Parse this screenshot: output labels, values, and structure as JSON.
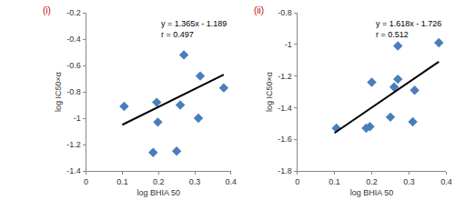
{
  "chart_data": [
    {
      "type": "scatter",
      "title": "(i)",
      "x": [
        0.105,
        0.185,
        0.195,
        0.198,
        0.25,
        0.26,
        0.27,
        0.31,
        0.315,
        0.38
      ],
      "values": [
        -0.91,
        -1.26,
        -0.88,
        -1.03,
        -1.25,
        -0.9,
        -0.52,
        -1.0,
        -0.68,
        -0.77
      ],
      "color": "#4a7ebb",
      "marker": "diamond",
      "trendline": {
        "type": "line",
        "x": [
          0.1,
          0.38
        ],
        "values": [
          -1.05,
          -0.67
        ],
        "color": "#000000",
        "line_style": "solid"
      },
      "annotations": [
        "y = 1.365x - 1.189",
        "r = 0.497"
      ],
      "x_label": "log BHIA 50",
      "y_label": "log IC50×α",
      "xlim": [
        0,
        0.4
      ],
      "xticks": [
        0,
        0.1,
        0.2,
        0.3,
        0.4
      ],
      "ylim": [
        -1.4,
        -0.2
      ],
      "yticks": [
        -1.4,
        -1.2,
        -1,
        -0.8,
        -0.6,
        -0.4,
        -0.2
      ],
      "grid": false
    },
    {
      "type": "scatter",
      "title": "(ii)",
      "x": [
        0.105,
        0.185,
        0.195,
        0.2,
        0.25,
        0.26,
        0.27,
        0.27,
        0.31,
        0.315,
        0.38
      ],
      "values": [
        -1.53,
        -1.53,
        -1.52,
        -1.24,
        -1.46,
        -1.27,
        -1.22,
        -1.01,
        -1.49,
        -1.29,
        -0.99
      ],
      "color": "#4a7ebb",
      "marker": "diamond",
      "trendline": {
        "type": "line",
        "x": [
          0.1,
          0.38
        ],
        "values": [
          -1.56,
          -1.11
        ],
        "color": "#000000",
        "line_style": "solid"
      },
      "annotations": [
        "y = 1.618x - 1.726",
        "r = 0.512"
      ],
      "x_label": "log BHIA 50",
      "y_label": "log IC50×α",
      "xlim": [
        0,
        0.4
      ],
      "xticks": [
        0,
        0.1,
        0.2,
        0.3,
        0.4
      ],
      "ylim": [
        -1.8,
        -0.8
      ],
      "yticks": [
        -1.8,
        -1.6,
        -1.4,
        -1.2,
        -1,
        -0.8
      ],
      "grid": false
    }
  ]
}
